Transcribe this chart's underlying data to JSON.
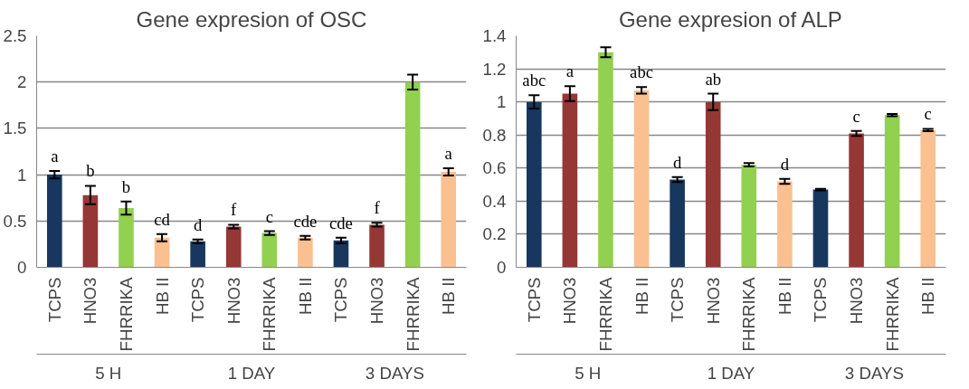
{
  "chart_data": [
    {
      "type": "bar",
      "title": "Gene expresion of OSC",
      "categories": [
        "TCPS",
        "HNO3",
        "FHRRIKA",
        "HB II",
        "TCPS",
        "HNO3",
        "FHRRIKA",
        "HB II",
        "TCPS",
        "HNO3",
        "FHRRIKA",
        "HB II"
      ],
      "values": [
        1.0,
        0.78,
        0.64,
        0.32,
        0.28,
        0.44,
        0.37,
        0.32,
        0.29,
        0.46,
        2.0,
        1.03
      ],
      "errors": [
        0.04,
        0.1,
        0.07,
        0.04,
        0.02,
        0.02,
        0.02,
        0.02,
        0.03,
        0.02,
        0.08,
        0.04
      ],
      "colors": [
        "#17375e",
        "#953735",
        "#92d050",
        "#fac090",
        "#17375e",
        "#953735",
        "#92d050",
        "#fac090",
        "#17375e",
        "#953735",
        "#92d050",
        "#fac090"
      ],
      "value_labels": [
        "a",
        "b",
        "b",
        "cd",
        "d",
        "f",
        "c",
        "cde",
        "cde",
        "f",
        null,
        "a"
      ],
      "annotations": [
        "5 H",
        "1 DAY",
        "3 DAYS"
      ],
      "ylim": [
        0,
        2.5
      ],
      "yticks": [
        0,
        0.5,
        1,
        1.5,
        2,
        2.5
      ],
      "grid": "y"
    },
    {
      "type": "bar",
      "title": "Gene expresion of ALP",
      "categories": [
        "TCPS",
        "HNO3",
        "FHRRIKA",
        "HB II",
        "TCPS",
        "HNO3",
        "FHRRIKA",
        "HB II",
        "TCPS",
        "HNO3",
        "FHRRIKA",
        "HB II"
      ],
      "values": [
        1.0,
        1.05,
        1.3,
        1.07,
        0.53,
        1.0,
        0.62,
        0.52,
        0.47,
        0.81,
        0.92,
        0.83
      ],
      "errors": [
        0.04,
        0.045,
        0.03,
        0.02,
        0.015,
        0.05,
        0.01,
        0.015,
        0.005,
        0.015,
        0.007,
        0.007
      ],
      "colors": [
        "#17375e",
        "#953735",
        "#92d050",
        "#fac090",
        "#17375e",
        "#953735",
        "#92d050",
        "#fac090",
        "#17375e",
        "#953735",
        "#92d050",
        "#fac090"
      ],
      "value_labels": [
        "abc",
        "a",
        null,
        "abc",
        "d",
        "ab",
        null,
        "d",
        null,
        "c",
        null,
        "c"
      ],
      "annotations": [
        "5 H",
        "1 DAY",
        "3 DAYS"
      ],
      "ylim": [
        0,
        1.4
      ],
      "yticks": [
        0,
        0.2,
        0.4,
        0.6,
        0.8,
        1,
        1.2,
        1.4
      ],
      "grid": "y"
    }
  ]
}
